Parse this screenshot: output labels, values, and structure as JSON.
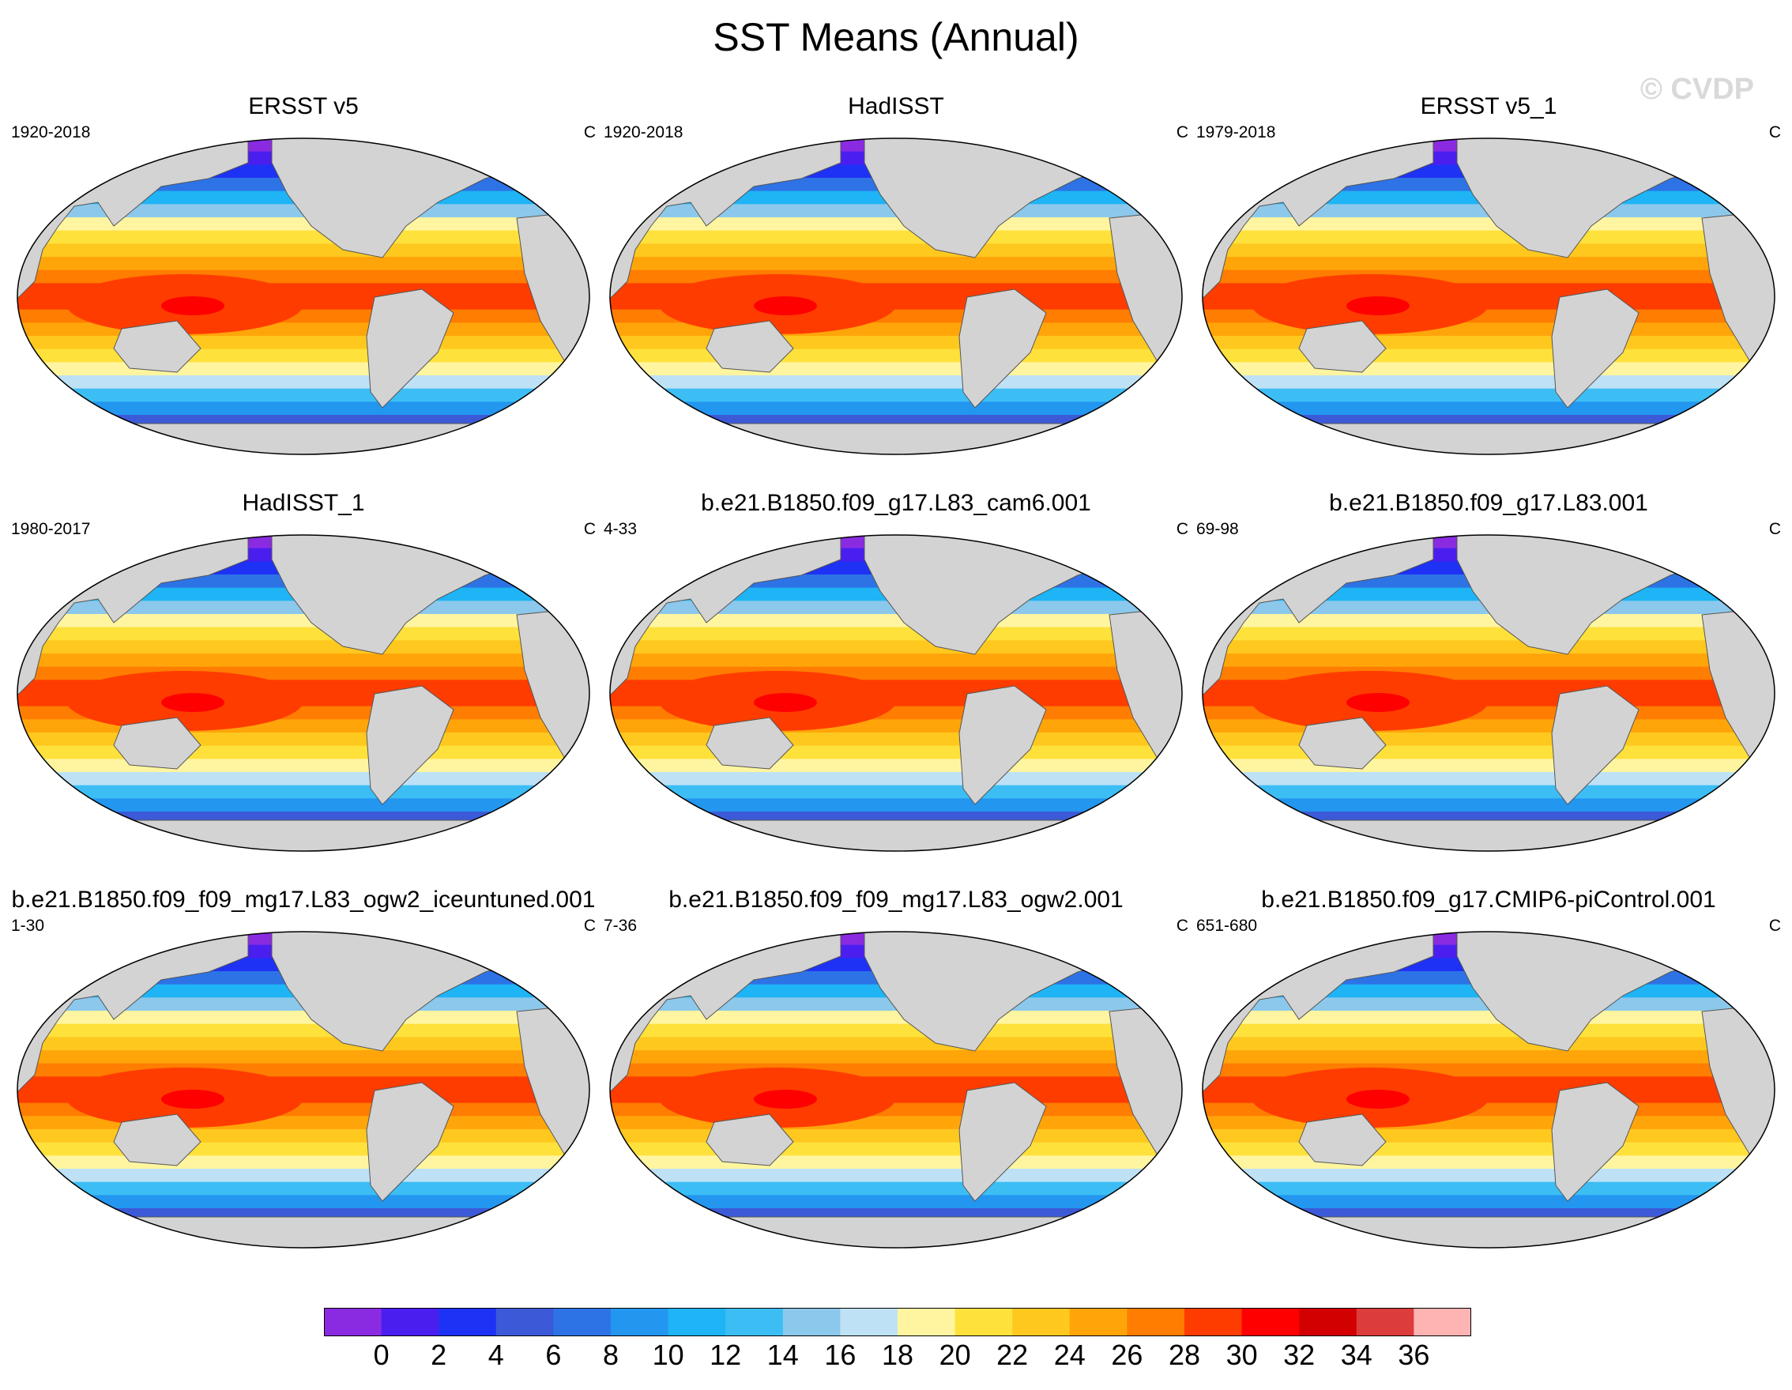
{
  "title": "SST Means (Annual)",
  "watermark": "© CVDP",
  "panels": [
    {
      "title": "ERSST v5",
      "years": "1920-2018",
      "units": "C"
    },
    {
      "title": "HadISST",
      "years": "1920-2018",
      "units": "C"
    },
    {
      "title": "ERSST v5_1",
      "years": "1979-2018",
      "units": "C"
    },
    {
      "title": "HadISST_1",
      "years": "1980-2017",
      "units": "C"
    },
    {
      "title": "b.e21.B1850.f09_g17.L83_cam6.001",
      "years": "4-33",
      "units": "C"
    },
    {
      "title": "b.e21.B1850.f09_g17.L83.001",
      "years": "69-98",
      "units": "C"
    },
    {
      "title": "b.e21.B1850.f09_f09_mg17.L83_ogw2_iceuntuned.001",
      "years": "1-30",
      "units": "C"
    },
    {
      "title": "b.e21.B1850.f09_f09_mg17.L83_ogw2.001",
      "years": "7-36",
      "units": "C"
    },
    {
      "title": "b.e21.B1850.f09_g17.CMIP6-piControl.001",
      "years": "651-680",
      "units": "C"
    }
  ],
  "colorbar": {
    "labels": [
      "0",
      "2",
      "4",
      "6",
      "8",
      "10",
      "12",
      "14",
      "16",
      "18",
      "20",
      "22",
      "24",
      "26",
      "28",
      "30",
      "32",
      "34",
      "36"
    ],
    "colors": [
      "#8a2be2",
      "#4b1ef0",
      "#1e32f5",
      "#3c5ad7",
      "#2d73e6",
      "#2396f0",
      "#1eb4f5",
      "#3cbef5",
      "#8cc8eb",
      "#bee1f5",
      "#fff5a0",
      "#ffe13c",
      "#ffc81e",
      "#ffa50a",
      "#ff7d00",
      "#ff3c00",
      "#ff0000",
      "#d20000",
      "#dc3c3c",
      "#ffb4b4"
    ]
  },
  "land_color": "#d3d3d3"
}
